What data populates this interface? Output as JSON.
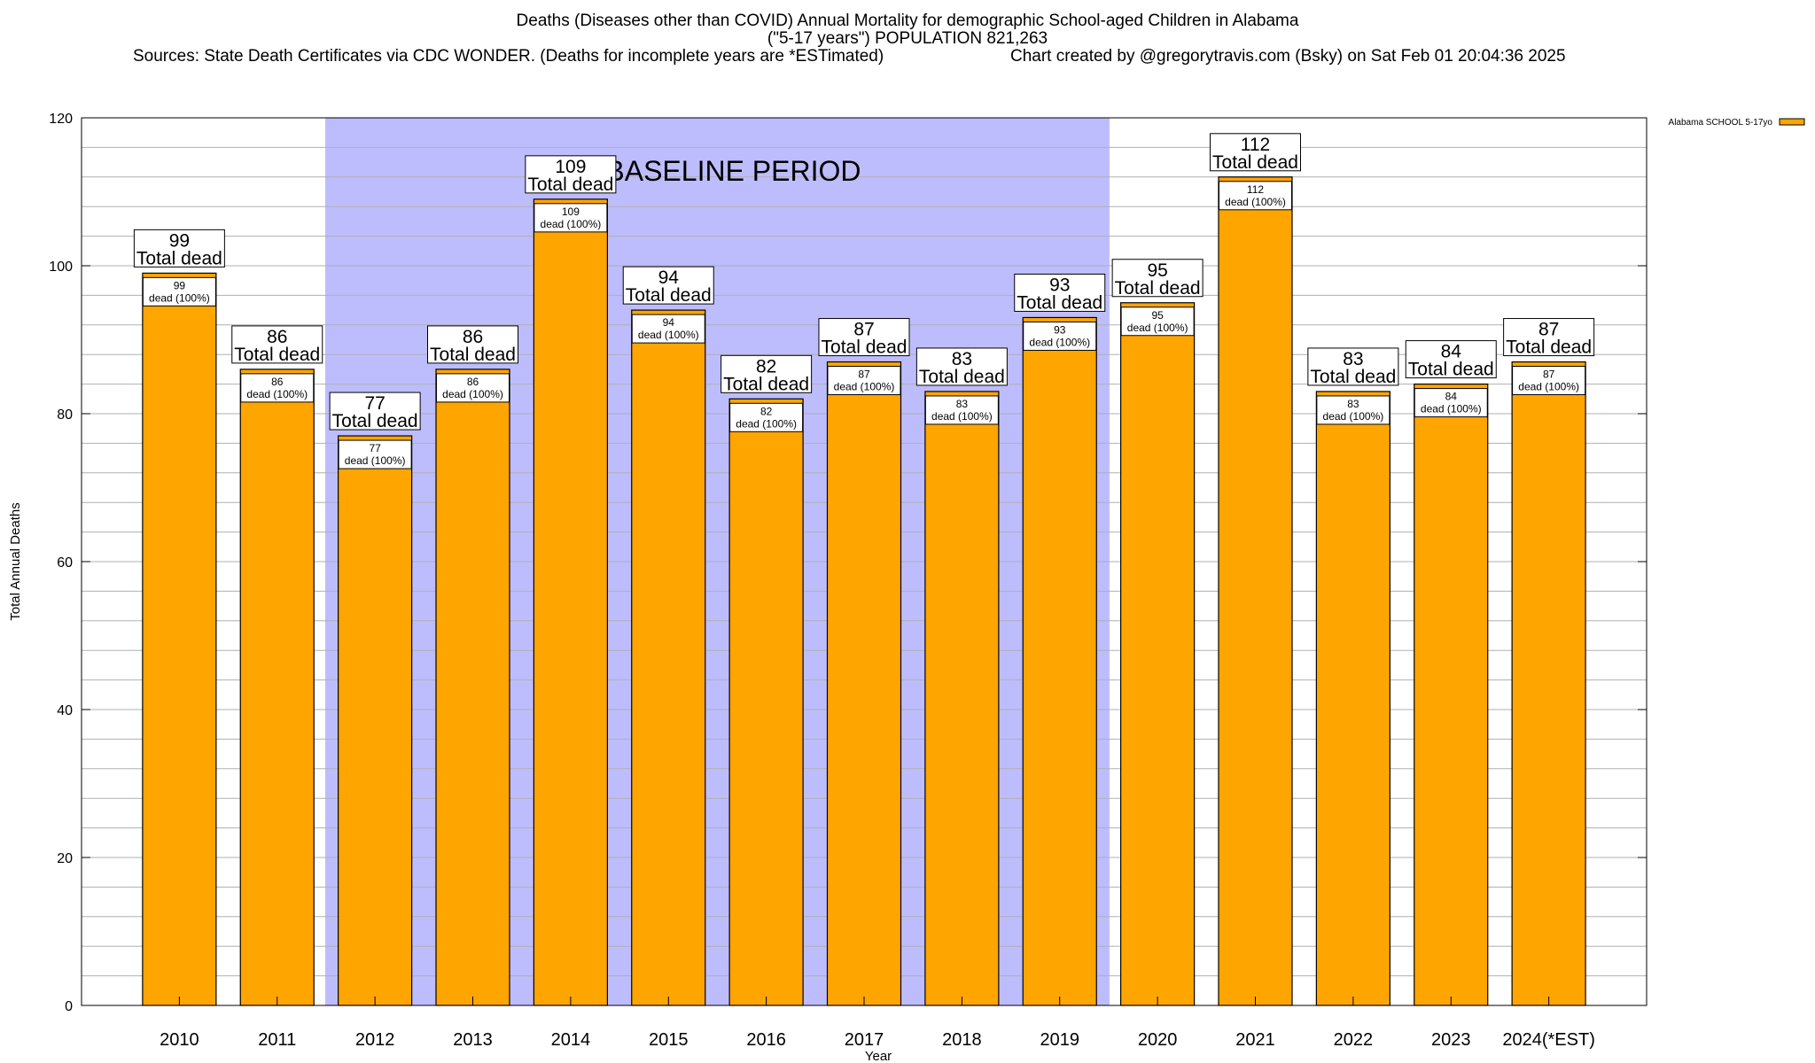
{
  "header": {
    "title_line1": "Deaths (Diseases other than COVID) Annual Mortality for demographic School-aged Children in Alabama",
    "title_line2": "(\"5-17 years\") POPULATION 821,263",
    "sources": "Sources: State Death Certificates via CDC WONDER. (Deaths for incomplete years are *ESTimated)",
    "credit": "Chart created by @gregorytravis.com (Bsky) on Sat Feb 01 20:04:36 2025"
  },
  "chart_data": {
    "type": "bar",
    "categories": [
      "2010",
      "2011",
      "2012",
      "2013",
      "2014",
      "2015",
      "2016",
      "2017",
      "2018",
      "2019",
      "2020",
      "2021",
      "2022",
      "2023",
      "2024(*EST)"
    ],
    "series": [
      {
        "name": "Alabama SCHOOL 5-17yo",
        "values": [
          99,
          86,
          77,
          86,
          109,
          94,
          82,
          87,
          83,
          93,
          95,
          112,
          83,
          84,
          87
        ]
      }
    ],
    "xlabel": "Year",
    "ylabel": "Total Annual Deaths",
    "ylim": [
      0,
      120
    ],
    "yticks": [
      0,
      20,
      40,
      60,
      80,
      100,
      120
    ],
    "grid": true,
    "legend_placement": "top-right",
    "baseline_period": {
      "label": "BASELINE PERIOD",
      "from": "2012",
      "to": "2019"
    },
    "bar_top_label_suffix": "Total dead",
    "bar_inner_label_suffix": "dead (100%)",
    "colors": {
      "bar_fill": "#FFA500",
      "bar_stroke": "#000000",
      "baseline_shade": "#BDBDFE",
      "grid": "#B0B0B0",
      "background": "#FFFFFF"
    }
  }
}
